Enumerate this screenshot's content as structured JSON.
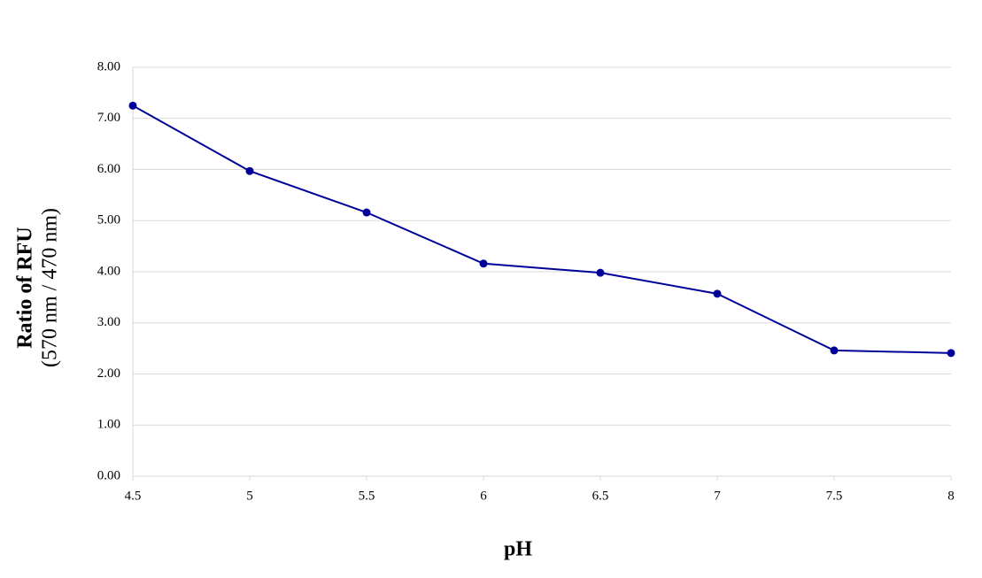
{
  "chart_data": {
    "type": "line",
    "xlabel": "pH",
    "ylabel": [
      "Ratio of RFU",
      "(570 nm / 470 nm)"
    ],
    "x": [
      4.5,
      5,
      5.5,
      6,
      6.5,
      7,
      7.5,
      8
    ],
    "series": [
      {
        "color": "#000099",
        "values": [
          7.25,
          5.97,
          5.16,
          4.16,
          3.98,
          3.57,
          2.46,
          2.41
        ]
      }
    ],
    "xlim": [
      4.5,
      8
    ],
    "xticks": [
      4.5,
      5,
      5.5,
      6,
      6.5,
      7,
      7.5,
      8
    ],
    "ylim": [
      0,
      8
    ],
    "yticks": [
      {
        "value": 0,
        "label": "0.00"
      },
      {
        "value": 1,
        "label": "1.00"
      },
      {
        "value": 2,
        "label": "2.00"
      },
      {
        "value": 3,
        "label": "3.00"
      },
      {
        "value": 4,
        "label": "4.00"
      },
      {
        "value": 5,
        "label": "5.00"
      },
      {
        "value": 6,
        "label": "6.00"
      },
      {
        "value": 7,
        "label": "7.00"
      },
      {
        "value": 8,
        "label": "8.00"
      }
    ],
    "grid": true
  }
}
